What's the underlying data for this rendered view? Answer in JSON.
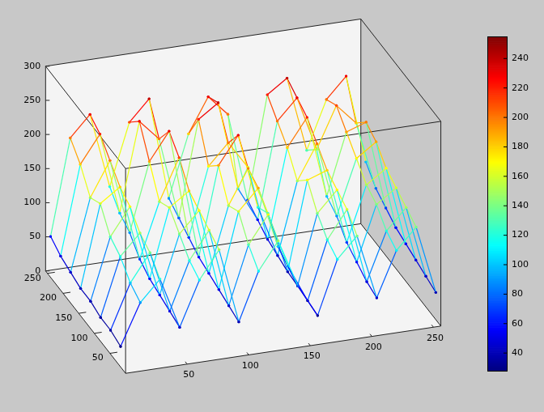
{
  "chart_data": {
    "type": "surface",
    "x": [
      0,
      16,
      32,
      48,
      64,
      80,
      96,
      112,
      128,
      144,
      160,
      176,
      192,
      208,
      224,
      240,
      256
    ],
    "y": [
      16,
      48,
      80,
      112,
      144,
      176,
      208,
      240
    ],
    "z": [
      [
        30,
        90,
        120,
        45,
        110,
        150,
        40,
        110,
        150,
        80,
        32,
        110,
        140,
        45,
        110,
        140,
        40
      ],
      [
        35,
        100,
        140,
        50,
        120,
        160,
        45,
        130,
        170,
        90,
        35,
        120,
        160,
        50,
        120,
        150,
        45
      ],
      [
        35,
        120,
        150,
        55,
        140,
        170,
        50,
        160,
        190,
        100,
        38,
        140,
        170,
        60,
        140,
        160,
        50
      ],
      [
        40,
        130,
        170,
        60,
        160,
        180,
        55,
        150,
        200,
        130,
        40,
        170,
        180,
        70,
        150,
        170,
        55
      ],
      [
        40,
        160,
        180,
        70,
        150,
        210,
        60,
        190,
        230,
        120,
        45,
        150,
        200,
        90,
        170,
        190,
        60
      ],
      [
        45,
        150,
        200,
        90,
        190,
        230,
        70,
        170,
        200,
        160,
        50,
        180,
        220,
        100,
        190,
        200,
        70
      ],
      [
        50,
        180,
        220,
        100,
        230,
        200,
        80,
        220,
        240,
        110,
        60,
        200,
        230,
        150,
        210,
        180,
        80
      ],
      [
        60,
        200,
        230,
        120,
        210,
        240,
        90,
        180,
        230,
        200,
        70,
        220,
        240,
        130,
        200,
        230,
        100
      ]
    ],
    "xlim": [
      0,
      256
    ],
    "xticks": [
      50,
      100,
      150,
      200,
      250
    ],
    "ylim": [
      0,
      256
    ],
    "yticks": [
      50,
      100,
      150,
      200,
      250
    ],
    "zlim": [
      0,
      300
    ],
    "zticks": [
      0,
      50,
      100,
      150,
      200,
      250,
      300
    ],
    "colorbar": {
      "range": [
        28,
        255
      ],
      "ticks": [
        40,
        60,
        80,
        100,
        120,
        140,
        160,
        180,
        200,
        220,
        240
      ]
    }
  }
}
